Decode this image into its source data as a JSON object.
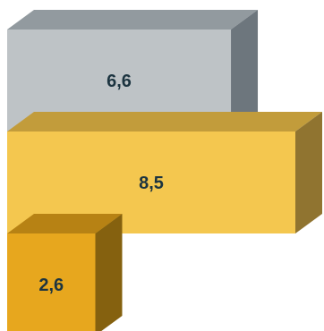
{
  "chart_data": {
    "type": "bar",
    "orientation": "horizontal",
    "style": "3d",
    "categories": [
      "",
      "",
      ""
    ],
    "values": [
      6.6,
      8.5,
      2.6
    ],
    "value_labels": [
      "6,6",
      "8,5",
      "2,6"
    ],
    "xlim": [
      0,
      8.5
    ],
    "grid": false,
    "legend": "none",
    "colors": [
      {
        "front": "#bec3c6",
        "top": "#929a9f",
        "side": "#6d767d"
      },
      {
        "front": "#f4c74f",
        "top": "#c29c3b",
        "side": "#907430"
      },
      {
        "front": "#e7a71e",
        "top": "#b78214",
        "side": "#85610f"
      }
    ]
  }
}
